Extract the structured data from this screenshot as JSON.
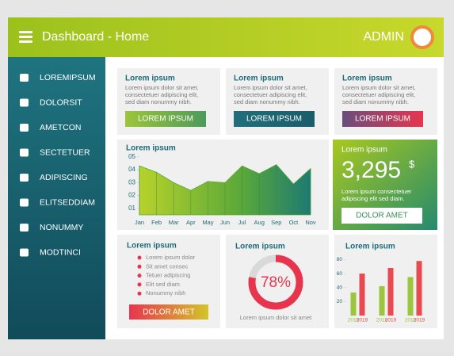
{
  "header": {
    "title": "Dashboard - Home",
    "user": "ADMIN"
  },
  "menu": [
    "LOREMIPSUM",
    "DOLORSIT",
    "AMETCON",
    "SECTETUER",
    "ADIPISCING",
    "ELITSEDDIAM",
    "NONUMMY",
    "MODTINCI"
  ],
  "cards": [
    {
      "title": "Lorem ipsum",
      "lines": [
        "Lorem ipsum dolor sit amet,",
        "consectetuer adipiscing elit,",
        "sed diam nonummy nibh."
      ],
      "button": "LOREM IPSUM"
    },
    {
      "title": "Lorem ipsum",
      "lines": [
        "Lorem ipsum dolor sit amet,",
        "consectetuer adipiscing elit,",
        "sed diam nonummy nibh."
      ],
      "button": "LOREM IPSUM"
    },
    {
      "title": "Lorem ipsum",
      "lines": [
        "Lorem ipsum dolor sit amet,",
        "consectetuer adipiscing elit,",
        "sed diam nonummy nibh."
      ],
      "button": "LOREM IPSUM"
    }
  ],
  "stat_card": {
    "title": "Lorem ipsum",
    "value": "3,295",
    "unit": "$",
    "lines": [
      "Lorem ipsum consectetuer",
      "adipiscing elit sed diam."
    ],
    "button": "DOLOR AMET"
  },
  "list_card": {
    "title": "Lorem ipsum",
    "items": [
      "Lorem ipsum dolor",
      "Sit amet consec",
      "Tetuer adipiscing",
      "Elit sed diam",
      "Nonummy nibh"
    ],
    "button": "DOLOR AMET"
  },
  "chart_data": [
    {
      "type": "area",
      "title": "Lorem ipsum",
      "categories": [
        "Jan",
        "Feb",
        "Mar",
        "Apr",
        "May",
        "Jun",
        "Jul",
        "Aug",
        "Sep",
        "Oct",
        "Nov"
      ],
      "values": [
        4.3,
        3.8,
        3.0,
        2.4,
        3.1,
        3.0,
        4.3,
        3.7,
        4.4,
        2.9,
        4.1
      ],
      "color": "#5aa83a",
      "ylim": [
        0.5,
        5.3
      ],
      "yticks": [
        {
          "value": 1,
          "label": "01"
        },
        {
          "value": 2,
          "label": "02"
        },
        {
          "value": 3,
          "label": "03"
        },
        {
          "value": 4,
          "label": "04"
        },
        {
          "value": 5,
          "label": "05"
        }
      ]
    },
    {
      "type": "donut",
      "title": "Lorem ipsum",
      "value": 78,
      "value_label": "78%",
      "caption": "Lorem ipsum dolor sit amet",
      "color": "#e8354e"
    },
    {
      "type": "bar",
      "title": "Lorem ipsum",
      "categories": [
        "2018",
        "2019",
        "2018",
        "2019",
        "2018",
        "2019"
      ],
      "values": [
        33,
        60,
        42,
        68,
        55,
        78
      ],
      "colors": [
        "#9bc53d",
        "#e84a4f",
        "#9bc53d",
        "#e84a4f",
        "#9bc53d",
        "#e84a4f"
      ],
      "ylim": [
        0,
        85
      ],
      "yticks": [
        20,
        40,
        60,
        80
      ]
    }
  ]
}
